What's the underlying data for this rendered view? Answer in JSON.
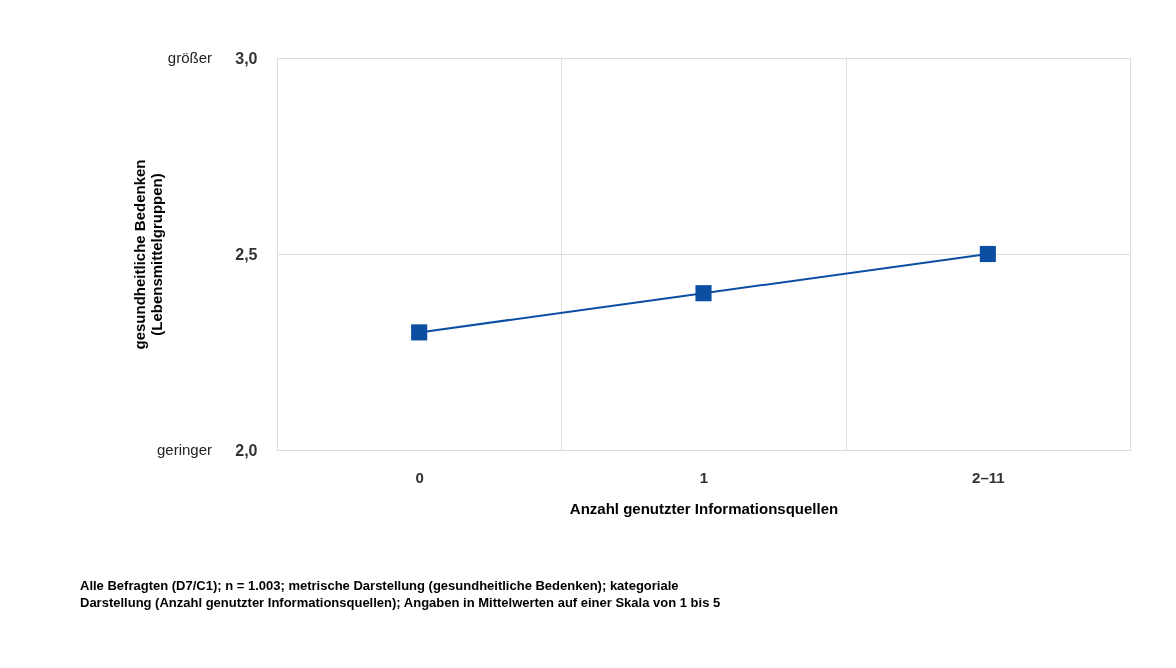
{
  "chart_data": {
    "type": "line",
    "xlabel": "Anzahl genutzter Informationsquellen",
    "ylabel": "gesundheitliche Bedenken\n(Lebensmittelgruppen)",
    "categories": [
      "0",
      "1",
      "2–11"
    ],
    "series": [
      {
        "color": "#0b4ea2",
        "values": [
          2.3,
          2.4,
          2.5
        ]
      }
    ],
    "ylim": [
      2.0,
      3.0
    ],
    "yticks": [
      {
        "value": 2.0,
        "label": "2,0"
      },
      {
        "value": 2.5,
        "label": "2,5"
      },
      {
        "value": 3.0,
        "label": "3,0"
      }
    ],
    "grid": true,
    "legend": false,
    "marker": "square",
    "line_style": "solid",
    "annotations": [
      "geringer",
      "größer",
      "Alle Befragten (D7/C1); n = 1.003; metrische Darstellung (gesundheitliche Bedenken); kategoriale\nDarstellung (Anzahl genutzter Informationsquellen); Angaben in Mittelwerten auf einer Skala von 1 bis 5"
    ]
  }
}
